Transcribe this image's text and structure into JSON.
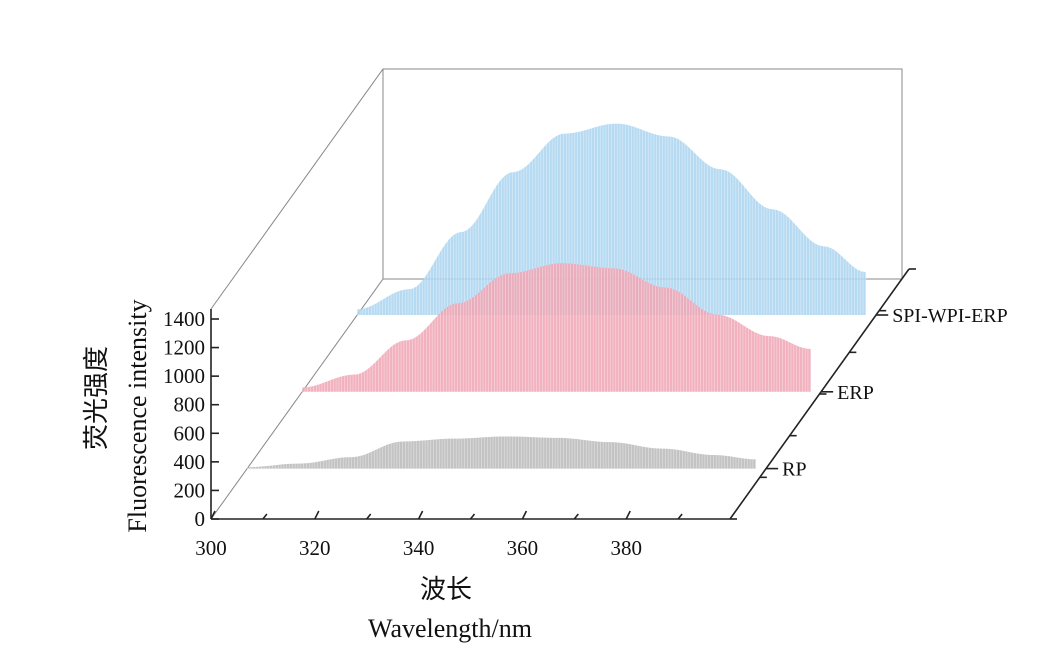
{
  "chart_data": {
    "type": "area",
    "projection": "3d-waterfall",
    "x": [
      300,
      310,
      320,
      330,
      340,
      350,
      360,
      370,
      380,
      390,
      398
    ],
    "x_ticks": [
      300,
      320,
      340,
      360,
      380
    ],
    "y_ticks": [
      0,
      200,
      400,
      600,
      800,
      1000,
      1200,
      1400
    ],
    "xlim": [
      300,
      400
    ],
    "ylim": [
      0,
      1400
    ],
    "xlabel_cn": "波长",
    "xlabel": "Wavelength/nm",
    "ylabel_cn": "荧光强度",
    "ylabel": "Fluorescence  intensity",
    "series": [
      {
        "name": "RP",
        "color": "#b9b9b9",
        "values": [
          10,
          35,
          80,
          190,
          210,
          225,
          215,
          185,
          140,
          95,
          65
        ]
      },
      {
        "name": "ERP",
        "color": "#f0a3b3",
        "values": [
          30,
          120,
          360,
          620,
          830,
          900,
          865,
          730,
          540,
          390,
          300
        ]
      },
      {
        "name": "SPI-WPI-ERP",
        "color": "#a9d3f0",
        "values": [
          40,
          180,
          580,
          1000,
          1270,
          1340,
          1250,
          1020,
          740,
          480,
          300
        ]
      }
    ]
  }
}
